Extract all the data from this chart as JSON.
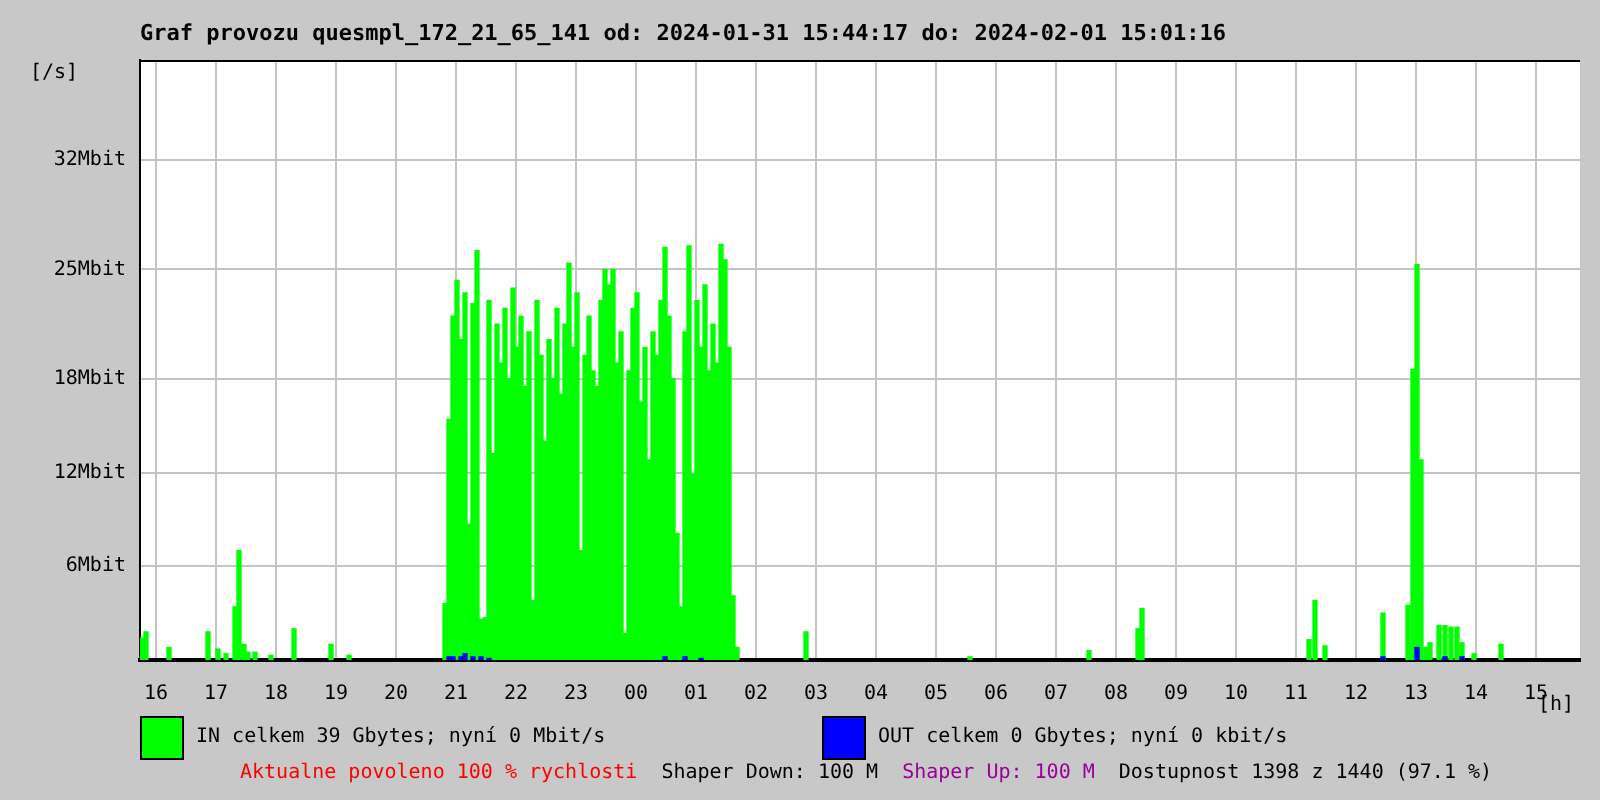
{
  "chart_data": {
    "type": "bar",
    "title": "Graf provozu quesmpl_172_21_65_141 od: 2024-01-31 15:44:17 do: 2024-02-01 15:01:16",
    "xlabel": "[h]",
    "ylabel": "[/s]",
    "xlim": [
      "2024-01-31T15:44",
      "2024-02-01T15:44"
    ],
    "xticks": [
      {
        "value": "2024-01-31T16:00",
        "label": "16"
      },
      {
        "value": "2024-01-31T17:00",
        "label": "17"
      },
      {
        "value": "2024-01-31T18:00",
        "label": "18"
      },
      {
        "value": "2024-01-31T19:00",
        "label": "19"
      },
      {
        "value": "2024-01-31T20:00",
        "label": "20"
      },
      {
        "value": "2024-01-31T21:00",
        "label": "21"
      },
      {
        "value": "2024-01-31T22:00",
        "label": "22"
      },
      {
        "value": "2024-01-31T23:00",
        "label": "23"
      },
      {
        "value": "2024-02-01T00:00",
        "label": "00"
      },
      {
        "value": "2024-02-01T01:00",
        "label": "01"
      },
      {
        "value": "2024-02-01T02:00",
        "label": "02"
      },
      {
        "value": "2024-02-01T03:00",
        "label": "03"
      },
      {
        "value": "2024-02-01T04:00",
        "label": "04"
      },
      {
        "value": "2024-02-01T05:00",
        "label": "05"
      },
      {
        "value": "2024-02-01T06:00",
        "label": "06"
      },
      {
        "value": "2024-02-01T07:00",
        "label": "07"
      },
      {
        "value": "2024-02-01T08:00",
        "label": "08"
      },
      {
        "value": "2024-02-01T09:00",
        "label": "09"
      },
      {
        "value": "2024-02-01T10:00",
        "label": "10"
      },
      {
        "value": "2024-02-01T11:00",
        "label": "11"
      },
      {
        "value": "2024-02-01T12:00",
        "label": "12"
      },
      {
        "value": "2024-02-01T13:00",
        "label": "13"
      },
      {
        "value": "2024-02-01T14:00",
        "label": "14"
      },
      {
        "value": "2024-02-01T15:00",
        "label": "15"
      }
    ],
    "ylim": [
      0,
      38.4
    ],
    "yticks": [
      {
        "value": 6,
        "label": "6Mbit"
      },
      {
        "value": 12,
        "label": "12Mbit"
      },
      {
        "value": 18,
        "label": "18Mbit"
      },
      {
        "value": 25,
        "label": "25Mbit"
      },
      {
        "value": 32,
        "label": "32Mbit"
      }
    ],
    "grid": true,
    "legend": "bottom",
    "series": [
      {
        "name": "IN celkem 39 Gbytes; nyní 0 Mbit/s",
        "color": "#00ff00",
        "x": [
          "2024-01-31T15:46",
          "2024-01-31T15:50",
          "2024-01-31T16:13",
          "2024-01-31T16:52",
          "2024-01-31T17:02",
          "2024-01-31T17:10",
          "2024-01-31T17:19",
          "2024-01-31T17:23",
          "2024-01-31T17:28",
          "2024-01-31T17:32",
          "2024-01-31T17:39",
          "2024-01-31T17:55",
          "2024-01-31T18:18",
          "2024-01-31T18:55",
          "2024-01-31T19:13",
          "2024-01-31T20:49",
          "2024-01-31T20:53",
          "2024-01-31T20:57",
          "2024-01-31T21:01",
          "2024-01-31T21:05",
          "2024-01-31T21:09",
          "2024-01-31T21:13",
          "2024-01-31T21:17",
          "2024-01-31T21:21",
          "2024-01-31T21:25",
          "2024-01-31T21:29",
          "2024-01-31T21:33",
          "2024-01-31T21:37",
          "2024-01-31T21:41",
          "2024-01-31T21:45",
          "2024-01-31T21:49",
          "2024-01-31T21:53",
          "2024-01-31T21:57",
          "2024-01-31T22:01",
          "2024-01-31T22:05",
          "2024-01-31T22:09",
          "2024-01-31T22:13",
          "2024-01-31T22:17",
          "2024-01-31T22:21",
          "2024-01-31T22:25",
          "2024-01-31T22:29",
          "2024-01-31T22:33",
          "2024-01-31T22:37",
          "2024-01-31T22:41",
          "2024-01-31T22:45",
          "2024-01-31T22:49",
          "2024-01-31T22:53",
          "2024-01-31T22:57",
          "2024-01-31T23:01",
          "2024-01-31T23:05",
          "2024-01-31T23:09",
          "2024-01-31T23:13",
          "2024-01-31T23:17",
          "2024-01-31T23:21",
          "2024-01-31T23:25",
          "2024-01-31T23:29",
          "2024-01-31T23:33",
          "2024-01-31T23:37",
          "2024-01-31T23:41",
          "2024-01-31T23:45",
          "2024-01-31T23:49",
          "2024-01-31T23:53",
          "2024-01-31T23:57",
          "2024-02-01T00:01",
          "2024-02-01T00:05",
          "2024-02-01T00:09",
          "2024-02-01T00:13",
          "2024-02-01T00:17",
          "2024-02-01T00:21",
          "2024-02-01T00:25",
          "2024-02-01T00:29",
          "2024-02-01T00:33",
          "2024-02-01T00:37",
          "2024-02-01T00:41",
          "2024-02-01T00:45",
          "2024-02-01T00:49",
          "2024-02-01T00:53",
          "2024-02-01T00:57",
          "2024-02-01T01:01",
          "2024-02-01T01:05",
          "2024-02-01T01:09",
          "2024-02-01T01:13",
          "2024-02-01T01:17",
          "2024-02-01T01:21",
          "2024-02-01T01:25",
          "2024-02-01T01:29",
          "2024-02-01T01:33",
          "2024-02-01T01:37",
          "2024-02-01T01:41",
          "2024-02-01T02:50",
          "2024-02-01T05:34",
          "2024-02-01T07:33",
          "2024-02-01T08:22",
          "2024-02-01T08:26",
          "2024-02-01T11:13",
          "2024-02-01T11:19",
          "2024-02-01T11:29",
          "2024-02-01T12:27",
          "2024-02-01T12:52",
          "2024-02-01T12:57",
          "2024-02-01T13:01",
          "2024-02-01T13:05",
          "2024-02-01T13:10",
          "2024-02-01T13:14",
          "2024-02-01T13:23",
          "2024-02-01T13:29",
          "2024-02-01T13:35",
          "2024-02-01T13:41",
          "2024-02-01T13:46",
          "2024-02-01T13:58",
          "2024-02-01T14:25"
        ],
        "values": [
          1.4,
          1.8,
          0.8,
          1.8,
          0.7,
          0.4,
          3.4,
          7.0,
          1.0,
          0.5,
          0.5,
          0.3,
          2.0,
          1.0,
          0.3,
          3.6,
          15.4,
          22.0,
          24.3,
          20.5,
          23.5,
          8.7,
          22.8,
          26.2,
          2.6,
          2.7,
          23.0,
          13.2,
          21.5,
          19.0,
          22.5,
          18.0,
          23.8,
          20.0,
          22.0,
          17.5,
          21.0,
          3.8,
          23.0,
          19.5,
          14.0,
          20.5,
          18.0,
          22.5,
          17.0,
          21.5,
          25.4,
          20.0,
          23.5,
          7.0,
          19.5,
          22.0,
          18.5,
          17.5,
          23.0,
          25.0,
          24.0,
          25.0,
          19.0,
          21.0,
          1.7,
          18.5,
          22.5,
          23.5,
          16.5,
          20.0,
          12.8,
          21.0,
          19.5,
          23.0,
          26.4,
          22.0,
          18.0,
          8.1,
          3.4,
          21.0,
          26.5,
          11.9,
          23.0,
          20.0,
          24.0,
          18.5,
          21.5,
          19.0,
          26.6,
          25.6,
          20.0,
          4.1,
          0.8,
          1.8,
          0.2,
          0.6,
          2.0,
          3.3,
          1.3,
          3.8,
          0.9,
          3.0,
          3.5,
          18.6,
          25.3,
          12.8,
          0.8,
          1.1,
          2.2,
          2.2,
          2.1,
          2.1,
          1.1,
          0.4,
          1.0
        ]
      },
      {
        "name": "OUT celkem 0 Gbytes; nyní 0 kbit/s",
        "color": "#0000ff",
        "x": [
          "2024-01-31T20:53",
          "2024-01-31T20:57",
          "2024-01-31T21:05",
          "2024-01-31T21:09",
          "2024-01-31T21:17",
          "2024-01-31T21:25",
          "2024-01-31T21:33",
          "2024-02-01T00:29",
          "2024-02-01T00:49",
          "2024-02-01T01:05",
          "2024-02-01T12:27",
          "2024-02-01T13:01",
          "2024-02-01T13:29",
          "2024-02-01T13:46"
        ],
        "values": [
          0.2,
          0.2,
          0.2,
          0.4,
          0.2,
          0.2,
          0.1,
          0.2,
          0.2,
          0.1,
          0.2,
          0.8,
          0.2,
          0.2
        ]
      }
    ],
    "annotations": [
      "Aktualne povoleno 100 % rychlosti",
      "Shaper Down: 100 M",
      "Shaper Up: 100 M",
      "Dostupnost 1398 z 1440 (97.1 %)"
    ]
  }
}
